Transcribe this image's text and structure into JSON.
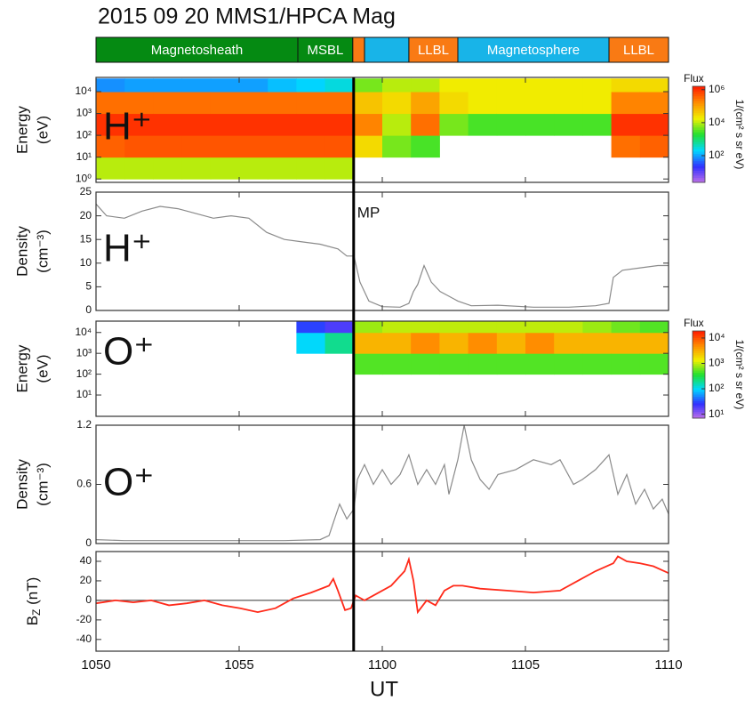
{
  "figure": {
    "title": "2015 09 20 MMS1/HPCA Mag",
    "xlabel": "UT",
    "xlim": [
      50,
      70
    ],
    "xticks": [
      {
        "value": 50,
        "label": "1050"
      },
      {
        "value": 55,
        "label": "1055"
      },
      {
        "value": 60,
        "label": "1100"
      },
      {
        "value": 65,
        "label": "1105"
      },
      {
        "value": 70,
        "label": "1110"
      }
    ],
    "marker": {
      "label": "MP",
      "x": 59
    },
    "colormap": [
      "#c070e8",
      "#3030ff",
      "#00d8ff",
      "#20e030",
      "#f0f000",
      "#ff8c00",
      "#ff1a00"
    ],
    "regions": [
      {
        "label": "Magnetosheath",
        "start": 50,
        "end": 57.05,
        "color": "#058a12"
      },
      {
        "label": "MSBL",
        "start": 57.05,
        "end": 58.97,
        "color": "#058a12"
      },
      {
        "start": 58.97,
        "end": 59.38,
        "color": "#f97a14"
      },
      {
        "start": 59.38,
        "end": 60.93,
        "color": "#18b4e8"
      },
      {
        "label": "LLBL",
        "start": 60.93,
        "end": 62.64,
        "color": "#f97a14"
      },
      {
        "label": "Magnetosphere",
        "start": 62.64,
        "end": 67.92,
        "color": "#18b4e8"
      },
      {
        "label": "LLBL",
        "start": 67.92,
        "end": 70,
        "color": "#f97a14"
      }
    ]
  },
  "chart_data": [
    {
      "type": "spectrogram",
      "panel_label": "H⁺",
      "ylabel": [
        "Energy",
        "(eV)"
      ],
      "yscale": "log",
      "ylim": [
        0.7,
        45000
      ],
      "yticks": [
        {
          "value": 1,
          "label": "10⁰"
        },
        {
          "value": 10,
          "label": "10¹"
        },
        {
          "value": 100,
          "label": "10²"
        },
        {
          "value": 1000,
          "label": "10³"
        },
        {
          "value": 10000,
          "label": "10⁴"
        }
      ],
      "colorbar_title": "Flux",
      "colorbar_units": "1/(cm² s sr eV)",
      "zlim": [
        2.4,
        1600000
      ],
      "zticks": [
        {
          "value": 100,
          "label": "10²"
        },
        {
          "value": 10000,
          "label": "10⁴"
        },
        {
          "value": 1000000,
          "label": "10⁶"
        }
      ],
      "x_bins": [
        50,
        51,
        52,
        53,
        54,
        55,
        56,
        57,
        58,
        59,
        60,
        61,
        62,
        63,
        64,
        65,
        66,
        67,
        68,
        69,
        70
      ],
      "y_bins": [
        1,
        10,
        100,
        1000,
        10000,
        40000
      ],
      "values": [
        [
          10000,
          400000,
          1000000,
          300000,
          80
        ],
        [
          10000,
          500000,
          1000000,
          300000,
          100
        ],
        [
          10000,
          500000,
          1000000,
          300000,
          100
        ],
        [
          10000,
          500000,
          1000000,
          300000,
          100
        ],
        [
          10000,
          500000,
          1000000,
          300000,
          100
        ],
        [
          10000,
          500000,
          1000000,
          300000,
          100
        ],
        [
          10000,
          500000,
          1000000,
          300000,
          150
        ],
        [
          10000,
          500000,
          1000000,
          300000,
          200
        ],
        [
          10000,
          500000,
          1000000,
          300000,
          300
        ],
        [
          null,
          30000,
          200000,
          50000,
          5000
        ],
        [
          null,
          5000,
          10000,
          30000,
          10000
        ],
        [
          null,
          3000,
          300000,
          100000,
          10000
        ],
        [
          null,
          null,
          5000,
          30000,
          20000
        ],
        [
          null,
          null,
          3000,
          20000,
          20000
        ],
        [
          null,
          null,
          3000,
          20000,
          20000
        ],
        [
          null,
          null,
          3000,
          20000,
          20000
        ],
        [
          null,
          null,
          3000,
          20000,
          20000
        ],
        [
          null,
          null,
          3000,
          20000,
          20000
        ],
        [
          null,
          300000,
          1000000,
          200000,
          30000
        ],
        [
          null,
          400000,
          1000000,
          200000,
          30000
        ]
      ]
    },
    {
      "type": "line",
      "panel_label": "H⁺",
      "ylabel": [
        "Density",
        "(cm⁻³)"
      ],
      "ylim": [
        0,
        25
      ],
      "yticks": [
        0,
        5,
        10,
        15,
        20,
        25
      ],
      "color": "#8a8a8a",
      "x": [
        50,
        50.37,
        50.99,
        51.61,
        52.24,
        52.86,
        53.48,
        54.1,
        54.72,
        55.34,
        55.96,
        56.58,
        57.2,
        57.83,
        58.45,
        58.76,
        59.01,
        59.22,
        59.53,
        60,
        60.62,
        60.93,
        61.09,
        61.24,
        61.46,
        61.71,
        62.02,
        62.33,
        62.64,
        63.11,
        64.04,
        65.28,
        66.52,
        67.45,
        67.92,
        68.07,
        68.39,
        69.01,
        69.63,
        70
      ],
      "values": [
        22.5,
        20,
        19.5,
        21,
        22,
        21.5,
        20.5,
        19.5,
        20,
        19.5,
        16.5,
        15,
        14.5,
        14,
        13,
        11.5,
        11.5,
        6,
        2,
        0.8,
        0.7,
        1.5,
        4,
        5.5,
        9.5,
        6,
        4,
        3,
        2,
        1,
        1.1,
        0.7,
        0.7,
        1,
        1.5,
        7,
        8.5,
        9,
        9.5,
        9.5
      ]
    },
    {
      "type": "spectrogram",
      "panel_label": "O⁺",
      "ylabel": [
        "Energy",
        "(eV)"
      ],
      "yscale": "log",
      "ylim": [
        0.95,
        35000
      ],
      "yticks": [
        {
          "value": 10,
          "label": "10¹"
        },
        {
          "value": 100,
          "label": "10²"
        },
        {
          "value": 1000,
          "label": "10³"
        },
        {
          "value": 10000,
          "label": "10⁴"
        }
      ],
      "colorbar_title": "Flux",
      "colorbar_units": "1/(cm² s sr eV)",
      "zlim": [
        7,
        19000
      ],
      "zticks": [
        {
          "value": 10,
          "label": "10¹"
        },
        {
          "value": 100,
          "label": "10²"
        },
        {
          "value": 1000,
          "label": "10³"
        },
        {
          "value": 10000,
          "label": "10⁴"
        }
      ],
      "x_bins": [
        50,
        51,
        52,
        53,
        54,
        55,
        56,
        57,
        58,
        59,
        60,
        61,
        62,
        63,
        64,
        65,
        66,
        67,
        68,
        69,
        70
      ],
      "y_bins": [
        1,
        10,
        100,
        1000,
        10000,
        40000
      ],
      "values": [
        [
          null,
          null,
          null,
          null,
          null
        ],
        [
          null,
          null,
          null,
          null,
          null
        ],
        [
          null,
          null,
          null,
          null,
          null
        ],
        [
          null,
          null,
          null,
          null,
          null
        ],
        [
          null,
          null,
          null,
          null,
          null
        ],
        [
          null,
          null,
          null,
          null,
          null
        ],
        [
          null,
          null,
          null,
          null,
          null
        ],
        [
          null,
          null,
          null,
          100,
          30
        ],
        [
          null,
          null,
          null,
          200,
          20
        ],
        [
          null,
          null,
          500,
          3000,
          800
        ],
        [
          null,
          null,
          500,
          3000,
          1000
        ],
        [
          null,
          null,
          500,
          5000,
          1000
        ],
        [
          null,
          null,
          500,
          3000,
          1000
        ],
        [
          null,
          null,
          500,
          5000,
          1000
        ],
        [
          null,
          null,
          500,
          3000,
          1000
        ],
        [
          null,
          null,
          500,
          5000,
          1000
        ],
        [
          null,
          null,
          500,
          3000,
          1000
        ],
        [
          null,
          null,
          500,
          3000,
          800
        ],
        [
          null,
          null,
          500,
          3000,
          600
        ],
        [
          null,
          null,
          500,
          3000,
          500
        ]
      ]
    },
    {
      "type": "line",
      "panel_label": "O⁺",
      "ylabel": [
        "Density",
        "(cm⁻³)"
      ],
      "ylim": [
        0,
        1.2
      ],
      "yticks": [
        0,
        0.6,
        1.2
      ],
      "color": "#8a8a8a",
      "x": [
        50,
        50.99,
        52.86,
        54.72,
        56.58,
        57.83,
        58.14,
        58.39,
        58.51,
        58.76,
        59.01,
        59.13,
        59.38,
        59.69,
        60,
        60.31,
        60.62,
        60.93,
        61.24,
        61.55,
        61.86,
        62.17,
        62.33,
        62.64,
        62.86,
        63.11,
        63.42,
        63.73,
        64.04,
        64.66,
        65.28,
        65.9,
        66.21,
        66.68,
        66.99,
        67.45,
        67.92,
        68.23,
        68.54,
        68.85,
        69.16,
        69.47,
        69.78,
        70
      ],
      "values": [
        0.04,
        0.03,
        0.03,
        0.03,
        0.03,
        0.04,
        0.08,
        0.3,
        0.4,
        0.25,
        0.35,
        0.65,
        0.8,
        0.6,
        0.75,
        0.6,
        0.7,
        0.9,
        0.6,
        0.75,
        0.6,
        0.8,
        0.5,
        0.85,
        1.2,
        0.85,
        0.65,
        0.55,
        0.7,
        0.75,
        0.85,
        0.8,
        0.85,
        0.6,
        0.65,
        0.75,
        0.9,
        0.5,
        0.7,
        0.4,
        0.55,
        0.35,
        0.45,
        0.3
      ]
    },
    {
      "type": "line",
      "ylabel_main": "B",
      "ylabel_sub": "Z",
      "ylabel_unit": " (nT)",
      "ylim": [
        -52,
        50
      ],
      "yticks": [
        -40,
        -20,
        0,
        20,
        40
      ],
      "zero_line": true,
      "color": "#ff2a1a",
      "x": [
        50,
        50.68,
        51.3,
        51.93,
        52.55,
        53.17,
        53.79,
        54.41,
        55.03,
        55.65,
        56.27,
        56.89,
        57.52,
        58.14,
        58.29,
        58.45,
        58.7,
        58.91,
        59.07,
        59.38,
        59.69,
        60.31,
        60.78,
        60.93,
        61.09,
        61.24,
        61.55,
        61.86,
        62.17,
        62.48,
        62.8,
        63.42,
        64.35,
        65.28,
        66.21,
        66.83,
        67.45,
        68.07,
        68.23,
        68.54,
        69.01,
        69.47,
        70
      ],
      "values": [
        -3,
        0,
        -2,
        0,
        -5,
        -3,
        0,
        -5,
        -8,
        -12,
        -8,
        2,
        8,
        15,
        22,
        10,
        -10,
        -8,
        5,
        0,
        5,
        15,
        30,
        42,
        20,
        -12,
        0,
        -5,
        10,
        15,
        15,
        12,
        10,
        8,
        10,
        20,
        30,
        38,
        45,
        40,
        38,
        35,
        28
      ]
    }
  ]
}
